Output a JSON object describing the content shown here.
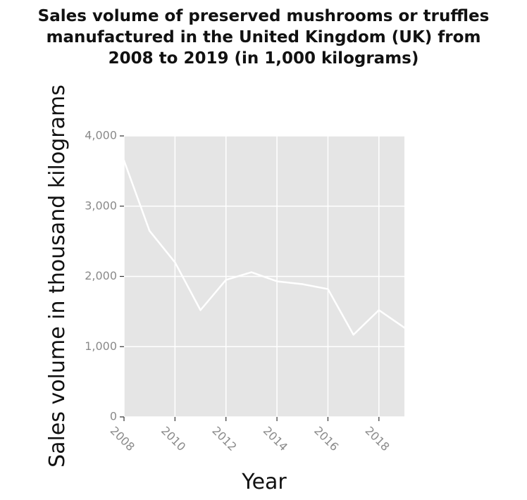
{
  "title_lines": [
    "Sales volume of preserved mushrooms or truffles",
    "manufactured in the United Kingdom (UK) from",
    "2008 to 2019 (in 1,000 kilograms)"
  ],
  "chart_data": {
    "type": "line",
    "title": "Sales volume of preserved mushrooms or truffles manufactured in the United Kingdom (UK) from 2008 to 2019 (in 1,000 kilograms)",
    "xlabel": "Year",
    "ylabel": "Sales volume in thousand kilograms",
    "xlim": [
      2008,
      2019
    ],
    "ylim": [
      0,
      4000
    ],
    "x_ticks": [
      2008,
      2010,
      2012,
      2014,
      2016,
      2018
    ],
    "x_tick_labels": [
      "2008",
      "2010",
      "2012",
      "2014",
      "2016",
      "2018"
    ],
    "y_ticks": [
      0,
      1000,
      2000,
      3000,
      4000
    ],
    "y_tick_labels": [
      "0",
      "1,000",
      "2,000",
      "3,000",
      "4,000"
    ],
    "grid": true,
    "series": [
      {
        "x": [
          2008,
          2009,
          2010,
          2011,
          2012,
          2013,
          2014,
          2015,
          2016,
          2017,
          2018,
          2019
        ],
        "values": [
          3650,
          2650,
          2200,
          1520,
          1950,
          2060,
          1930,
          1890,
          1820,
          1170,
          1520,
          1270
        ]
      }
    ],
    "colors": {
      "panel": "#e5e5e5",
      "grid": "#ffffff",
      "line": "#ffffff",
      "tick_label": "#8a8a8a"
    }
  }
}
